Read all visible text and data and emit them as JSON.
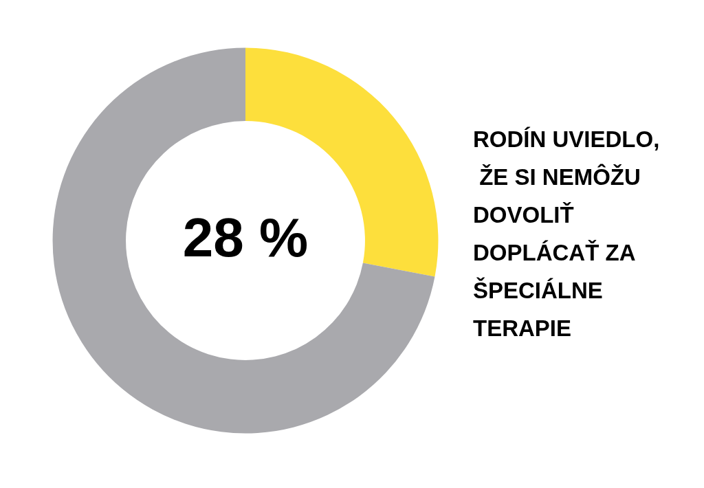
{
  "chart_data": {
    "type": "donut",
    "categories": [
      null,
      null
    ],
    "values": [
      28,
      72
    ],
    "colors": [
      "#fddf3c",
      "#a9a9ad"
    ],
    "annotations": [
      "28 %",
      "RODÍN UVIEDLO, ŽE SI NEMÔŽU DOVOLIŤ DOPLÁCAŤ ZA ŠPECIÁLNE TERAPIE"
    ]
  }
}
